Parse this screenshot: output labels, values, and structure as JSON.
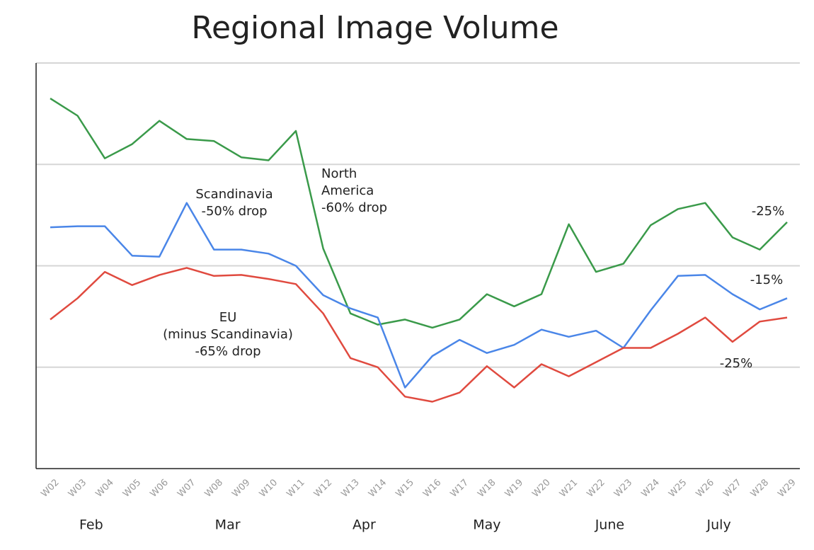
{
  "chart_data": {
    "type": "line",
    "title": "Regional Image Volume",
    "categories": [
      "W02",
      "W03",
      "W04",
      "W05",
      "W06",
      "W07",
      "W08",
      "W09",
      "W10",
      "W11",
      "W12",
      "W13",
      "W14",
      "W15",
      "W16",
      "W17",
      "W18",
      "W19",
      "W20",
      "W21",
      "W22",
      "W23",
      "W24",
      "W25",
      "W26",
      "W27",
      "W28",
      "W29"
    ],
    "series": [
      {
        "color": "#3a9a4a",
        "values": [
          3.65,
          3.48,
          3.06,
          3.2,
          3.43,
          3.25,
          3.23,
          3.07,
          3.04,
          3.33,
          2.17,
          1.53,
          1.42,
          1.47,
          1.39,
          1.47,
          1.72,
          1.6,
          1.72,
          2.41,
          1.94,
          2.02,
          2.4,
          2.56,
          2.62,
          2.28,
          2.16,
          2.43
        ]
      },
      {
        "color": "#4a86e8",
        "values": [
          2.38,
          2.39,
          2.39,
          2.1,
          2.09,
          2.62,
          2.16,
          2.16,
          2.12,
          2.0,
          1.71,
          1.58,
          1.49,
          0.8,
          1.11,
          1.27,
          1.14,
          1.22,
          1.37,
          1.3,
          1.36,
          1.19,
          1.56,
          1.9,
          1.91,
          1.72,
          1.57,
          1.68
        ]
      },
      {
        "color": "#e04a3f",
        "values": [
          1.47,
          1.68,
          1.94,
          1.81,
          1.91,
          1.98,
          1.9,
          1.91,
          1.87,
          1.82,
          1.53,
          1.09,
          1.0,
          0.71,
          0.66,
          0.75,
          1.01,
          0.8,
          1.03,
          0.91,
          1.05,
          1.19,
          1.19,
          1.33,
          1.49,
          1.25,
          1.45,
          1.49
        ]
      }
    ],
    "ylim": [
      0,
      4
    ],
    "yticks": [
      1,
      2,
      3,
      4
    ],
    "grid": true,
    "months": [
      {
        "label": "Feb",
        "span": [
          "W02",
          "W05"
        ]
      },
      {
        "label": "Mar",
        "span": [
          "W06",
          "W11"
        ]
      },
      {
        "label": "Apr",
        "span": [
          "W12",
          "W15"
        ]
      },
      {
        "label": "May",
        "span": [
          "W16",
          "W20"
        ]
      },
      {
        "label": "June",
        "span": [
          "W21",
          "W24"
        ]
      },
      {
        "label": "July",
        "span": [
          "W25",
          "W28"
        ]
      }
    ],
    "annotations": [
      {
        "lines": [
          "Scandinavia",
          "-50% drop"
        ]
      },
      {
        "lines": [
          "North",
          "America",
          "-60% drop"
        ]
      },
      {
        "lines": [
          "EU",
          "(minus Scandinavia)",
          "-65% drop"
        ]
      },
      {
        "lines": [
          "-25%"
        ]
      },
      {
        "lines": [
          "-15%"
        ]
      },
      {
        "lines": [
          "-25%"
        ]
      }
    ]
  }
}
